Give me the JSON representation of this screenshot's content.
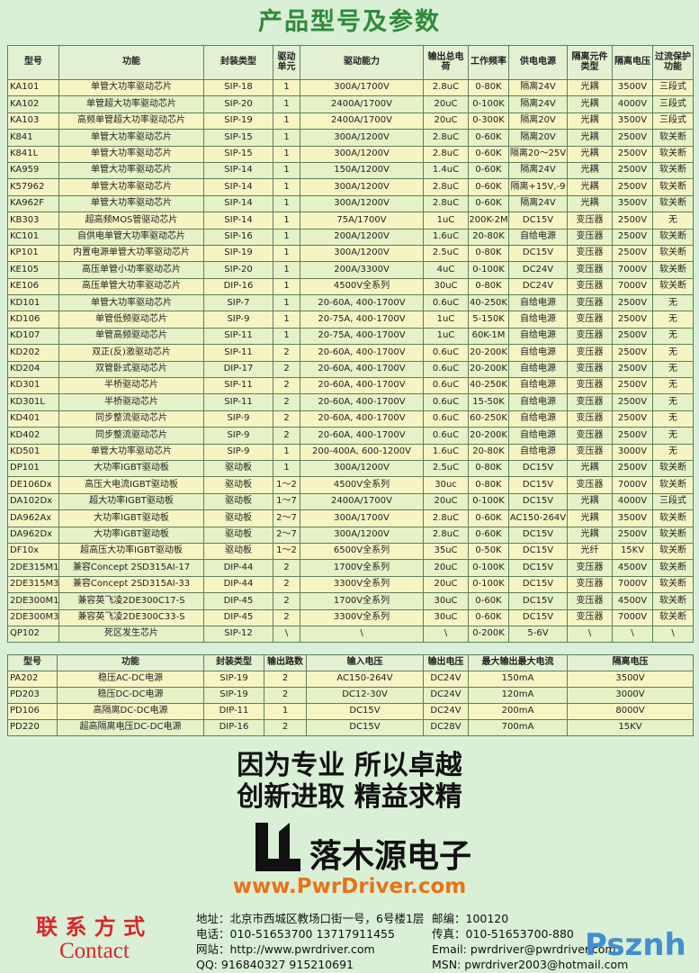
{
  "title": "产品型号及参数",
  "table1": {
    "header": [
      "型号",
      "功能",
      "封装类型",
      "驱动单元",
      "驱动能力",
      "输出总电荷",
      "工作频率",
      "供电电源",
      "隔离元件类型",
      "隔离电压",
      "过流保护功能"
    ],
    "rows": [
      [
        "KA101",
        "单管大功率驱动芯片",
        "SIP-18",
        "1",
        "300A/1700V",
        "2.8uC",
        "0-80K",
        "隔离24V",
        "光耦",
        "3500V",
        "三段式"
      ],
      [
        "KA102",
        "单管超大功率驱动芯片",
        "SIP-20",
        "1",
        "2400A/1700V",
        "20uC",
        "0-100K",
        "隔离24V",
        "光耦",
        "4000V",
        "三段式"
      ],
      [
        "KA103",
        "高频单管超大功率驱动芯片",
        "SIP-19",
        "1",
        "2400A/1700V",
        "20uC",
        "0-300K",
        "隔离20V",
        "光耦",
        "3500V",
        "三段式"
      ],
      [
        "K841",
        "单管大功率驱动芯片",
        "SIP-15",
        "1",
        "300A/1200V",
        "2.8uC",
        "0-60K",
        "隔离20V",
        "光耦",
        "2500V",
        "软关断"
      ],
      [
        "K841L",
        "单管大功率驱动芯片",
        "SIP-15",
        "1",
        "300A/1200V",
        "2.8uC",
        "0-60K",
        "隔离20～25V",
        "光耦",
        "2500V",
        "软关断"
      ],
      [
        "KA959",
        "单管大功率驱动芯片",
        "SIP-14",
        "1",
        "150A/1200V",
        "1.4uC",
        "0-60K",
        "隔离24V",
        "光耦",
        "2500V",
        "软关断"
      ],
      [
        "K57962",
        "单管大功率驱动芯片",
        "SIP-14",
        "1",
        "300A/1200V",
        "2.8uC",
        "0-60K",
        "隔离+15V,-9",
        "光耦",
        "2500V",
        "软关断"
      ],
      [
        "KA962F",
        "单管大功率驱动芯片",
        "SIP-14",
        "1",
        "300A/1200V",
        "2.8uC",
        "0-60K",
        "隔离24V",
        "光耦",
        "3500V",
        "软关断"
      ],
      [
        "KB303",
        "超高频MOS管驱动芯片",
        "SIP-14",
        "1",
        "75A/1700V",
        "1uC",
        "200K-2M",
        "DC15V",
        "变压器",
        "2500V",
        "无"
      ],
      [
        "KC101",
        "自供电单管大功率驱动芯片",
        "SIP-16",
        "1",
        "200A/1200V",
        "1.6uC",
        "20-80K",
        "自给电源",
        "变压器",
        "2500V",
        "软关断"
      ],
      [
        "KP101",
        "内置电源单管大功率驱动芯片",
        "SIP-19",
        "1",
        "300A/1200V",
        "2.5uC",
        "0-80K",
        "DC15V",
        "变压器",
        "2500V",
        "软关断"
      ],
      [
        "KE105",
        "高压单管小功率驱动芯片",
        "SIP-20",
        "1",
        "200A/3300V",
        "4uC",
        "0-100K",
        "DC24V",
        "变压器",
        "7000V",
        "软关断"
      ],
      [
        "KE106",
        "高压单管大功率驱动芯片",
        "DIP-16",
        "1",
        "4500V全系列",
        "30uC",
        "0-80K",
        "DC24V",
        "变压器",
        "7000V",
        "软关断"
      ],
      [
        "KD101",
        "单管大功率驱动芯片",
        "SIP-7",
        "1",
        "20-60A, 400-1700V",
        "0.6uC",
        "40-250K",
        "自给电源",
        "变压器",
        "2500V",
        "无"
      ],
      [
        "KD106",
        "单管低频驱动芯片",
        "SIP-9",
        "1",
        "20-75A, 400-1700V",
        "1uC",
        "5-150K",
        "自给电源",
        "变压器",
        "2500V",
        "无"
      ],
      [
        "KD107",
        "单管高频驱动芯片",
        "SIP-11",
        "1",
        "20-75A, 400-1700V",
        "1uC",
        "60K-1M",
        "自给电源",
        "变压器",
        "2500V",
        "无"
      ],
      [
        "KD202",
        "双正(反)激驱动芯片",
        "SIP-11",
        "2",
        "20-60A, 400-1700V",
        "0.6uC",
        "20-200K",
        "自给电源",
        "变压器",
        "2500V",
        "无"
      ],
      [
        "KD204",
        "双管卧式驱动芯片",
        "DIP-17",
        "2",
        "20-60A, 400-1700V",
        "0.6uC",
        "20-200K",
        "自给电源",
        "变压器",
        "2500V",
        "无"
      ],
      [
        "KD301",
        "半桥驱动芯片",
        "SIP-11",
        "2",
        "20-60A, 400-1700V",
        "0.6uC",
        "40-250K",
        "自给电源",
        "变压器",
        "2500V",
        "无"
      ],
      [
        "KD301L",
        "半桥驱动芯片",
        "SIP-11",
        "2",
        "20-60A, 400-1700V",
        "0.6uC",
        "15-50K",
        "自给电源",
        "变压器",
        "2500V",
        "无"
      ],
      [
        "KD401",
        "同步整流驱动芯片",
        "SIP-9",
        "2",
        "20-60A, 400-1700V",
        "0.6uC",
        "60-250K",
        "自给电源",
        "变压器",
        "2500V",
        "无"
      ],
      [
        "KD402",
        "同步整流驱动芯片",
        "SIP-9",
        "2",
        "20-60A, 400-1700V",
        "0.6uC",
        "20-200K",
        "自给电源",
        "变压器",
        "2500V",
        "无"
      ],
      [
        "KD501",
        "单管大功率驱动芯片",
        "SIP-9",
        "1",
        "200-400A, 600-1200V",
        "1.6uC",
        "20-80K",
        "自给电源",
        "变压器",
        "3000V",
        "无"
      ],
      [
        "DP101",
        "大功率IGBT驱动板",
        "驱动板",
        "1",
        "300A/1200V",
        "2.5uC",
        "0-80K",
        "DC15V",
        "光耦",
        "2500V",
        "软关断"
      ],
      [
        "DE106Dx",
        "高压大电流IGBT驱动板",
        "驱动板",
        "1～2",
        "4500V全系列",
        "30uc",
        "0-80K",
        "DC15V",
        "变压器",
        "7000V",
        "软关断"
      ],
      [
        "DA102Dx",
        "超大功率IGBT驱动板",
        "驱动板",
        "1～7",
        "2400A/1700V",
        "20uC",
        "0-100K",
        "DC15V",
        "光耦",
        "4000V",
        "三段式"
      ],
      [
        "DA962Ax",
        "大功率IGBT驱动板",
        "驱动板",
        "2～7",
        "300A/1700V",
        "2.8uC",
        "0-60K",
        "AC150-264V",
        "光耦",
        "3500V",
        "软关断"
      ],
      [
        "DA962Dx",
        "大功率IGBT驱动板",
        "驱动板",
        "2～7",
        "300A/1200V",
        "2.8uC",
        "0-60K",
        "DC15V",
        "光耦",
        "2500V",
        "软关断"
      ],
      [
        "DF10x",
        "超高压大功率IGBT驱动板",
        "驱动板",
        "1～2",
        "6500V全系列",
        "35uC",
        "0-50K",
        "DC15V",
        "光纤",
        "15KV",
        "软关断"
      ],
      [
        "2DE315M17",
        "兼容Concept 2SD315AI-17",
        "DIP-44",
        "2",
        "1700V全系列",
        "20uC",
        "0-100K",
        "DC15V",
        "变压器",
        "4500V",
        "软关断"
      ],
      [
        "2DE315M33",
        "兼容Concept 2SD315AI-33",
        "DIP-44",
        "2",
        "3300V全系列",
        "20uC",
        "0-100K",
        "DC15V",
        "变压器",
        "7000V",
        "软关断"
      ],
      [
        "2DE300M17",
        "兼容英飞凌2DE300C17-S",
        "DIP-45",
        "2",
        "1700V全系列",
        "30uC",
        "0-60K",
        "DC15V",
        "变压器",
        "4500V",
        "软关断"
      ],
      [
        "2DE300M33",
        "兼容英飞凌2DE300C33-S",
        "DIP-45",
        "2",
        "3300V全系列",
        "30uC",
        "0-60K",
        "DC15V",
        "变压器",
        "7000V",
        "软关断"
      ],
      [
        "QP102",
        "死区发生芯片",
        "SIP-12",
        "\\",
        "\\",
        "\\",
        "0-200K",
        "5-6V",
        "\\",
        "\\",
        "\\"
      ]
    ]
  },
  "table2": {
    "header": [
      "型号",
      "功能",
      "封装类型",
      "输出路数",
      "输入电压",
      "输出电压",
      "最大输出最大电流",
      "隔离电压"
    ],
    "rows": [
      [
        "PA202",
        "稳压AC-DC电源",
        "SIP-19",
        "2",
        "AC150-264V",
        "DC24V",
        "150mA",
        "3500V"
      ],
      [
        "PD203",
        "稳压DC-DC电源",
        "SIP-19",
        "2",
        "DC12-30V",
        "DC24V",
        "120mA",
        "3000V"
      ],
      [
        "PD106",
        "高隔离DC-DC电源",
        "DIP-11",
        "1",
        "DC15V",
        "DC24V",
        "200mA",
        "8000V"
      ],
      [
        "PD220",
        "超高隔离电压DC-DC电源",
        "DIP-16",
        "2",
        "DC15V",
        "DC28V",
        "700mA",
        "15KV"
      ]
    ]
  },
  "slogans": [
    "因为专业 所以卓越",
    "创新进取 精益求精"
  ],
  "logo": {
    "name": "落木源电子",
    "url": "www.PwrDriver.com"
  },
  "contact": {
    "title": "联 系 方 式",
    "title_en": "Contact",
    "left": [
      "地址：北京市西城区教场口街一号，6号楼1层",
      "电话：010-51653700 13717911455",
      "网站：http://www.pwrdriver.com",
      "QQ:  916840327  915210691"
    ],
    "right": [
      "邮编：100120",
      "传真：010-51653700-880",
      "Email: pwrdriver@pwrdriver.com",
      "MSN: pwrdriver2003@hotmail.com"
    ]
  },
  "watermark": "Psznh"
}
